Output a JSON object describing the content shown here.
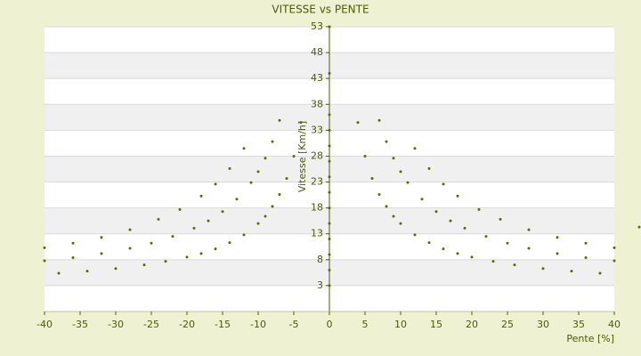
{
  "chart_data": {
    "type": "scatter",
    "title": "VITESSE vs PENTE",
    "xlabel": "Pente [%]",
    "ylabel": "Vitesse [Km/h]",
    "color": "#5a6b00",
    "x": [
      0,
      0,
      0,
      0,
      0,
      0,
      0,
      0,
      0,
      0,
      0,
      0,
      0,
      0,
      4,
      5,
      6,
      7,
      8,
      9,
      10,
      12,
      14,
      16,
      18,
      20,
      23,
      26,
      30,
      34,
      38,
      -4,
      -5,
      -6,
      -7,
      -8,
      -9,
      -10,
      -12,
      -14,
      -16,
      -18,
      -20,
      -23,
      -26,
      -30,
      -34,
      -38,
      7,
      8,
      9,
      10,
      11,
      13,
      15,
      17,
      19,
      22,
      25,
      28,
      32,
      36,
      40,
      -7,
      -8,
      -9,
      -10,
      -11,
      -13,
      -15,
      -17,
      -19,
      -22,
      -25,
      -28,
      -32,
      -36,
      -40,
      12,
      14,
      16,
      18,
      21,
      24,
      28,
      32,
      36,
      40,
      -12,
      -14,
      -16,
      -18,
      -21,
      -24,
      -28,
      -32,
      -36,
      -40,
      43.5
    ],
    "values": [
      3,
      6,
      9,
      12,
      15,
      18,
      21,
      24,
      27,
      30,
      33,
      36,
      44,
      53,
      34.5,
      28,
      23.7,
      20.6,
      18.3,
      16.4,
      15,
      12.8,
      11.3,
      10.1,
      9.2,
      8.5,
      7.7,
      7,
      6.3,
      5.8,
      5.4,
      34.5,
      28,
      23.7,
      20.6,
      18.3,
      16.4,
      15,
      12.8,
      11.3,
      10.1,
      9.2,
      8.5,
      7.7,
      7,
      6.3,
      5.8,
      5.4,
      34.9,
      30.8,
      27.6,
      25,
      22.9,
      19.7,
      17.3,
      15.5,
      14.1,
      12.5,
      11.2,
      10.2,
      9.2,
      8.4,
      7.8,
      34.9,
      30.8,
      27.6,
      25,
      22.9,
      19.7,
      17.3,
      15.5,
      14.1,
      12.5,
      11.2,
      10.2,
      9.2,
      8.4,
      7.8,
      29.5,
      25.6,
      22.6,
      20.3,
      17.7,
      15.8,
      13.8,
      12.3,
      11.2,
      10.3,
      29.5,
      25.6,
      22.6,
      20.3,
      17.7,
      15.8,
      13.8,
      12.3,
      11.2,
      10.3,
      14.3
    ],
    "xlim": [
      -40,
      40
    ],
    "ylim": [
      -2,
      53
    ],
    "xticks": [
      -40,
      -35,
      -30,
      -25,
      -20,
      -15,
      -10,
      -5,
      0,
      5,
      10,
      15,
      20,
      25,
      30,
      35,
      40
    ],
    "yticks": [
      3,
      8,
      13,
      18,
      23,
      28,
      33,
      38,
      43,
      48,
      53
    ],
    "grid": true
  }
}
